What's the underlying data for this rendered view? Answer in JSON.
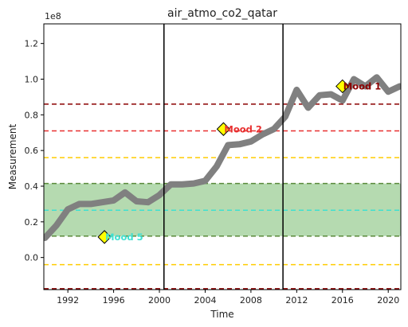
{
  "chart_data": {
    "type": "line",
    "title": "air_atmo_co2_qatar",
    "xlabel": "Time",
    "ylabel": "Measurement",
    "y_offset_label": "1e8",
    "xlim": [
      1989.9,
      2021.1
    ],
    "ylim": [
      -18000000,
      131000000
    ],
    "x_ticks": [
      1992,
      1996,
      2000,
      2004,
      2008,
      2012,
      2016,
      2020
    ],
    "y_ticks": [
      0,
      20000000,
      40000000,
      60000000,
      80000000,
      100000000,
      120000000
    ],
    "y_tick_labels": [
      "0.0",
      "0.2",
      "0.4",
      "0.6",
      "0.8",
      "1.0",
      "1.2"
    ],
    "grid": false,
    "series": [
      {
        "color": "#808080",
        "x": [
          1990,
          1991,
          1992,
          1993,
          1994,
          1995,
          1996,
          1997,
          1998,
          1999,
          2000,
          2001,
          2002,
          2003,
          2004,
          2005,
          2006,
          2007,
          2008,
          2009,
          2010,
          2011,
          2012,
          2013,
          2014,
          2015,
          2016,
          2017,
          2018,
          2019,
          2020,
          2021
        ],
        "y": [
          11000000,
          18000000,
          27000000,
          30000000,
          30000000,
          31000000,
          32000000,
          36500000,
          31500000,
          31000000,
          35000000,
          41000000,
          41000000,
          41500000,
          43000000,
          51000000,
          63000000,
          63500000,
          65000000,
          69000000,
          72000000,
          79000000,
          94000000,
          84000000,
          91000000,
          91500000,
          88000000,
          100000000,
          96000000,
          101000000,
          93000000,
          96000000
        ]
      }
    ],
    "vertical_lines": [
      {
        "x": 2000.4,
        "color": "#000000"
      },
      {
        "x": 2010.8,
        "color": "#000000"
      }
    ],
    "horizontal_lines": [
      {
        "y": 86000000,
        "color": "#8b0000"
      },
      {
        "y": 71000000,
        "color": "#e83030"
      },
      {
        "y": 56000000,
        "color": "#ffcc00"
      },
      {
        "y": 26500000,
        "color": "#40e0d0"
      },
      {
        "y": -4000000,
        "color": "#ffcc00"
      },
      {
        "y": -17500000,
        "color": "#8b0000"
      }
    ],
    "band": {
      "y_from": 12000000,
      "y_to": 41500000,
      "color": "#b5dab0",
      "edge_color": "#5a8a3a"
    },
    "annotations": [
      {
        "text": "Mood 1",
        "x": 2016,
        "y": 96000000,
        "color": "#8b0000"
      },
      {
        "text": "Mood 2",
        "x": 2005.6,
        "y": 72000000,
        "color": "#e83030"
      },
      {
        "text": "Mood 5",
        "x": 1995.2,
        "y": 11500000,
        "color": "#40e0d0"
      }
    ],
    "marker_color": "#ffff00"
  }
}
